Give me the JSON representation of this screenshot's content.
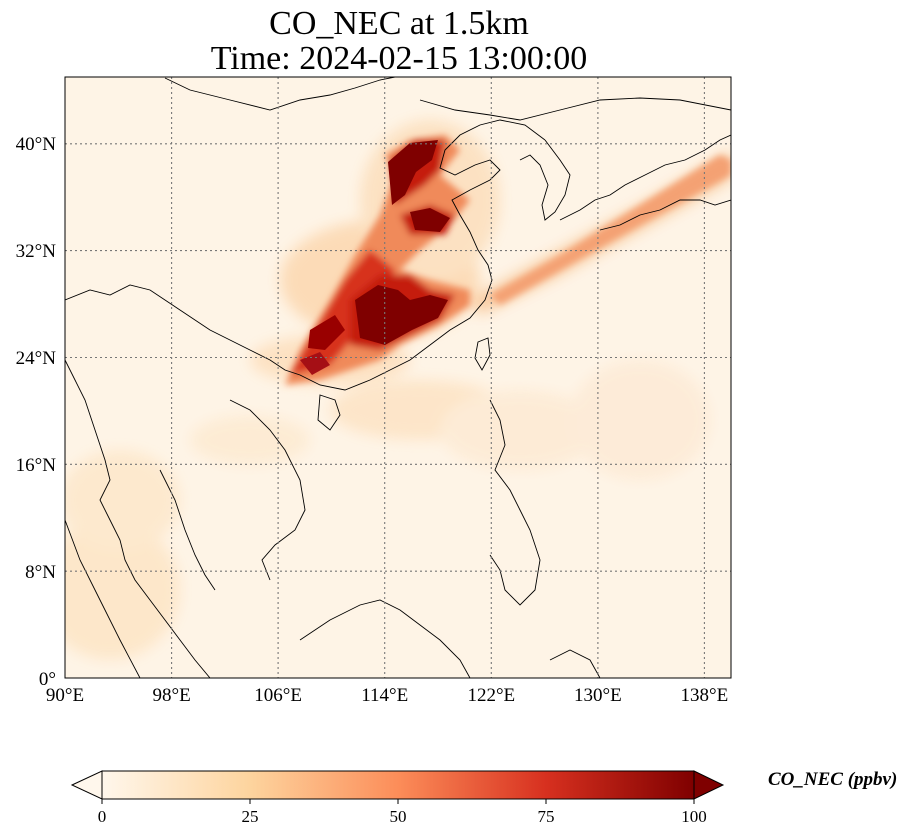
{
  "title": {
    "line1": "CO_NEC at 1.5km",
    "line2": "Time: 2024-02-15 13:00:00"
  },
  "map": {
    "extent": {
      "lon_min": 90,
      "lon_max": 140,
      "lat_min": 0,
      "lat_max": 45
    },
    "lat_ticks": [
      "40°N",
      "32°N",
      "24°N",
      "16°N",
      "8°N",
      "0°"
    ],
    "lon_ticks": [
      "90°E",
      "98°E",
      "106°E",
      "114°E",
      "122°E",
      "130°E",
      "138°E"
    ],
    "gridlines": true
  },
  "colorbar": {
    "label": "CO_NEC (ppbv)",
    "ticks": [
      "0",
      "25",
      "50",
      "75",
      "100"
    ],
    "colormap": "OrRd",
    "colors": [
      "#fff7ec",
      "#fdd49e",
      "#fc8d59",
      "#d7301f",
      "#7f0000"
    ],
    "extend": "both"
  }
}
